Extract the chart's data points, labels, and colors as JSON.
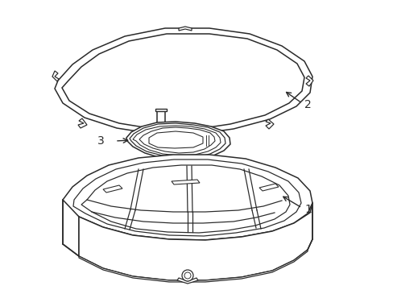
{
  "bg_color": "#ffffff",
  "line_color": "#2a2a2a",
  "line_width": 1.1,
  "label1": "1",
  "label2": "2",
  "label3": "3"
}
